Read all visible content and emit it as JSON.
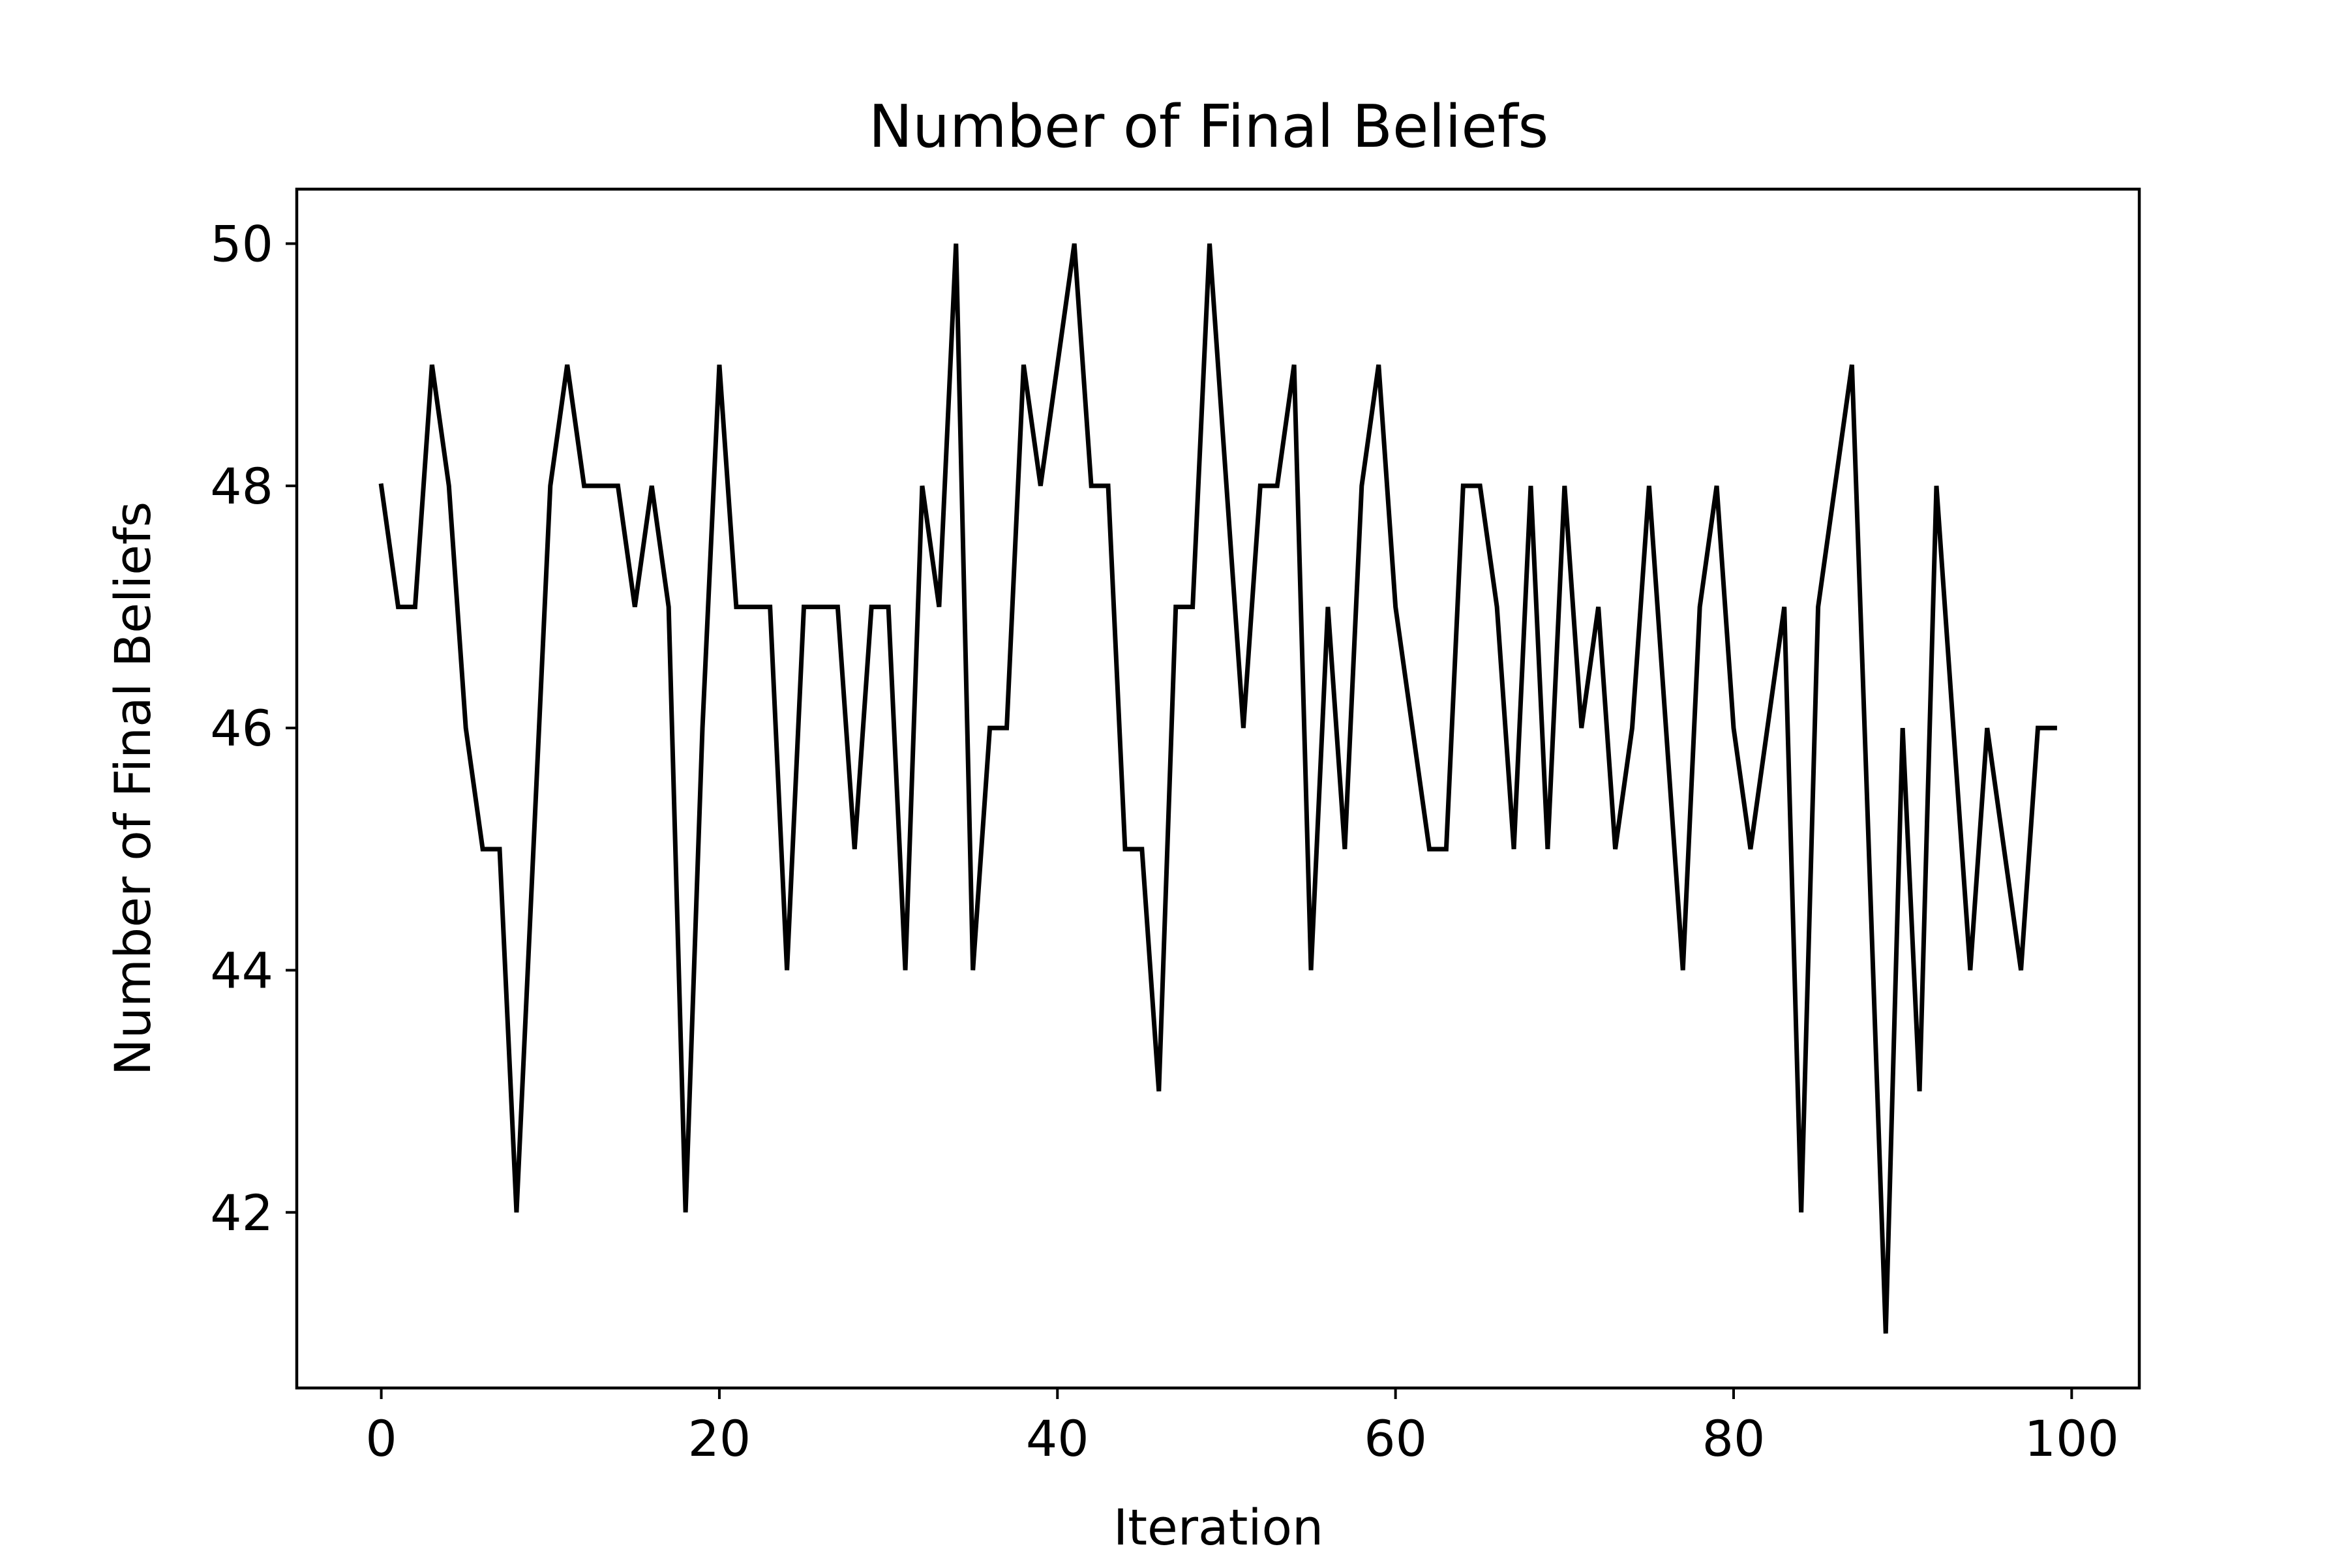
{
  "chart_data": {
    "type": "line",
    "title": "Number of Final Beliefs",
    "xlabel": "Iteration",
    "ylabel": "Number of Final Beliefs",
    "xlim": [
      -5,
      104
    ],
    "ylim": [
      40.55,
      50.45
    ],
    "xticks": [
      0,
      20,
      40,
      60,
      80,
      100
    ],
    "xtick_labels": [
      "0",
      "20",
      "40",
      "60",
      "80",
      "100"
    ],
    "yticks": [
      42,
      44,
      46,
      48,
      50
    ],
    "ytick_labels": [
      "42",
      "44",
      "46",
      "48",
      "50"
    ],
    "grid": false,
    "legend": "none",
    "series": [
      {
        "color": "#000000",
        "x": [
          0,
          1,
          2,
          3,
          4,
          5,
          6,
          7,
          8,
          9,
          10,
          11,
          12,
          13,
          14,
          15,
          16,
          17,
          18,
          19,
          20,
          21,
          22,
          23,
          24,
          25,
          26,
          27,
          28,
          29,
          30,
          31,
          32,
          33,
          34,
          35,
          36,
          37,
          38,
          39,
          40,
          41,
          42,
          43,
          44,
          45,
          46,
          47,
          48,
          49,
          50,
          51,
          52,
          53,
          54,
          55,
          56,
          57,
          58,
          59,
          60,
          61,
          62,
          63,
          64,
          65,
          66,
          67,
          68,
          69,
          70,
          71,
          72,
          73,
          74,
          75,
          76,
          77,
          78,
          79,
          80,
          81,
          82,
          83,
          84,
          85,
          86,
          87,
          88,
          89,
          90,
          91,
          92,
          93,
          94,
          95,
          96,
          97,
          98,
          99
        ],
        "values": [
          48,
          47,
          47,
          49,
          48,
          46,
          45,
          45,
          42,
          45,
          48,
          49,
          48,
          48,
          48,
          47,
          48,
          47,
          42,
          46,
          49,
          47,
          47,
          47,
          44,
          47,
          47,
          47,
          45,
          47,
          47,
          44,
          48,
          47,
          50,
          44,
          46,
          46,
          49,
          48,
          49,
          50,
          48,
          48,
          45,
          45,
          43,
          47,
          47,
          50,
          48,
          46,
          48,
          48,
          49,
          44,
          47,
          45,
          48,
          49,
          47,
          46,
          45,
          45,
          48,
          48,
          47,
          45,
          48,
          45,
          48,
          46,
          47,
          45,
          46,
          48,
          46,
          44,
          47,
          48,
          46,
          45,
          46,
          47,
          42,
          47,
          48,
          49,
          45,
          41,
          46,
          43,
          48,
          46,
          44,
          46,
          45,
          44,
          46,
          46
        ]
      }
    ]
  }
}
